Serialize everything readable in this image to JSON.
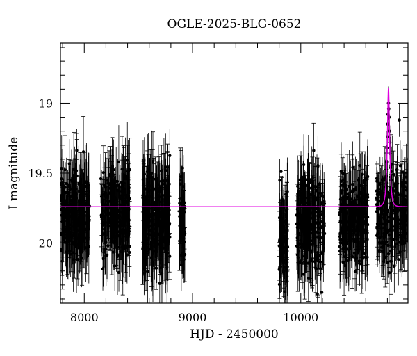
{
  "chart_data": {
    "type": "scatter",
    "title": "OGLE-2025-BLG-0652",
    "xlabel": "HJD - 2450000",
    "ylabel": "I magnitude",
    "xlim": [
      7780,
      10990
    ],
    "ylim": [
      20.43,
      18.57
    ],
    "y_inverted": true,
    "x_ticks": [
      8000,
      9000,
      10000
    ],
    "y_ticks": [
      19,
      19.5,
      20
    ],
    "x_minor_step": 200,
    "y_minor_step": 0.1,
    "grid": false,
    "colors": {
      "data": "#000000",
      "model": "#e000e0",
      "frame": "#000000"
    },
    "series": [
      {
        "style": "points-with-errorbars",
        "seasons": [
          {
            "x": [
              7790,
              8050
            ],
            "median": 19.8,
            "spread": 0.26,
            "err": 0.22,
            "n": 260
          },
          {
            "x": [
              8150,
              8420
            ],
            "median": 19.77,
            "spread": 0.27,
            "err": 0.22,
            "n": 240
          },
          {
            "x": [
              8540,
              8790
            ],
            "median": 19.82,
            "spread": 0.3,
            "err": 0.24,
            "n": 280
          },
          {
            "x": [
              8880,
              8930
            ],
            "median": 19.87,
            "spread": 0.28,
            "err": 0.22,
            "n": 50
          },
          {
            "x": [
              9800,
              9880
            ],
            "median": 19.95,
            "spread": 0.3,
            "err": 0.22,
            "n": 90
          },
          {
            "x": [
              9960,
              10220
            ],
            "median": 19.85,
            "spread": 0.28,
            "err": 0.22,
            "n": 240
          },
          {
            "x": [
              10360,
              10620
            ],
            "median": 19.82,
            "spread": 0.27,
            "err": 0.22,
            "n": 240
          },
          {
            "x": [
              10700,
              10990
            ],
            "median": 19.8,
            "spread": 0.26,
            "err": 0.2,
            "n": 250
          }
        ],
        "peak_points": [
          {
            "x": 10810,
            "y": 19.0
          },
          {
            "x": 10812,
            "y": 19.04
          },
          {
            "x": 10806,
            "y": 19.08
          },
          {
            "x": 10815,
            "y": 19.1
          },
          {
            "x": 10803,
            "y": 19.15
          },
          {
            "x": 10818,
            "y": 19.2
          },
          {
            "x": 10800,
            "y": 19.24
          },
          {
            "x": 10822,
            "y": 19.28
          },
          {
            "x": 10796,
            "y": 19.32
          },
          {
            "x": 10826,
            "y": 19.36
          },
          {
            "x": 10792,
            "y": 19.42
          },
          {
            "x": 10830,
            "y": 19.46
          },
          {
            "x": 10788,
            "y": 19.52
          },
          {
            "x": 10835,
            "y": 19.55
          },
          {
            "x": 10784,
            "y": 19.6
          },
          {
            "x": 10910,
            "y": 19.12
          }
        ]
      },
      {
        "style": "line",
        "model": "point-lens",
        "baseline": 19.74,
        "t0": 10810,
        "tE": 18,
        "u0": 0.5
      }
    ]
  }
}
